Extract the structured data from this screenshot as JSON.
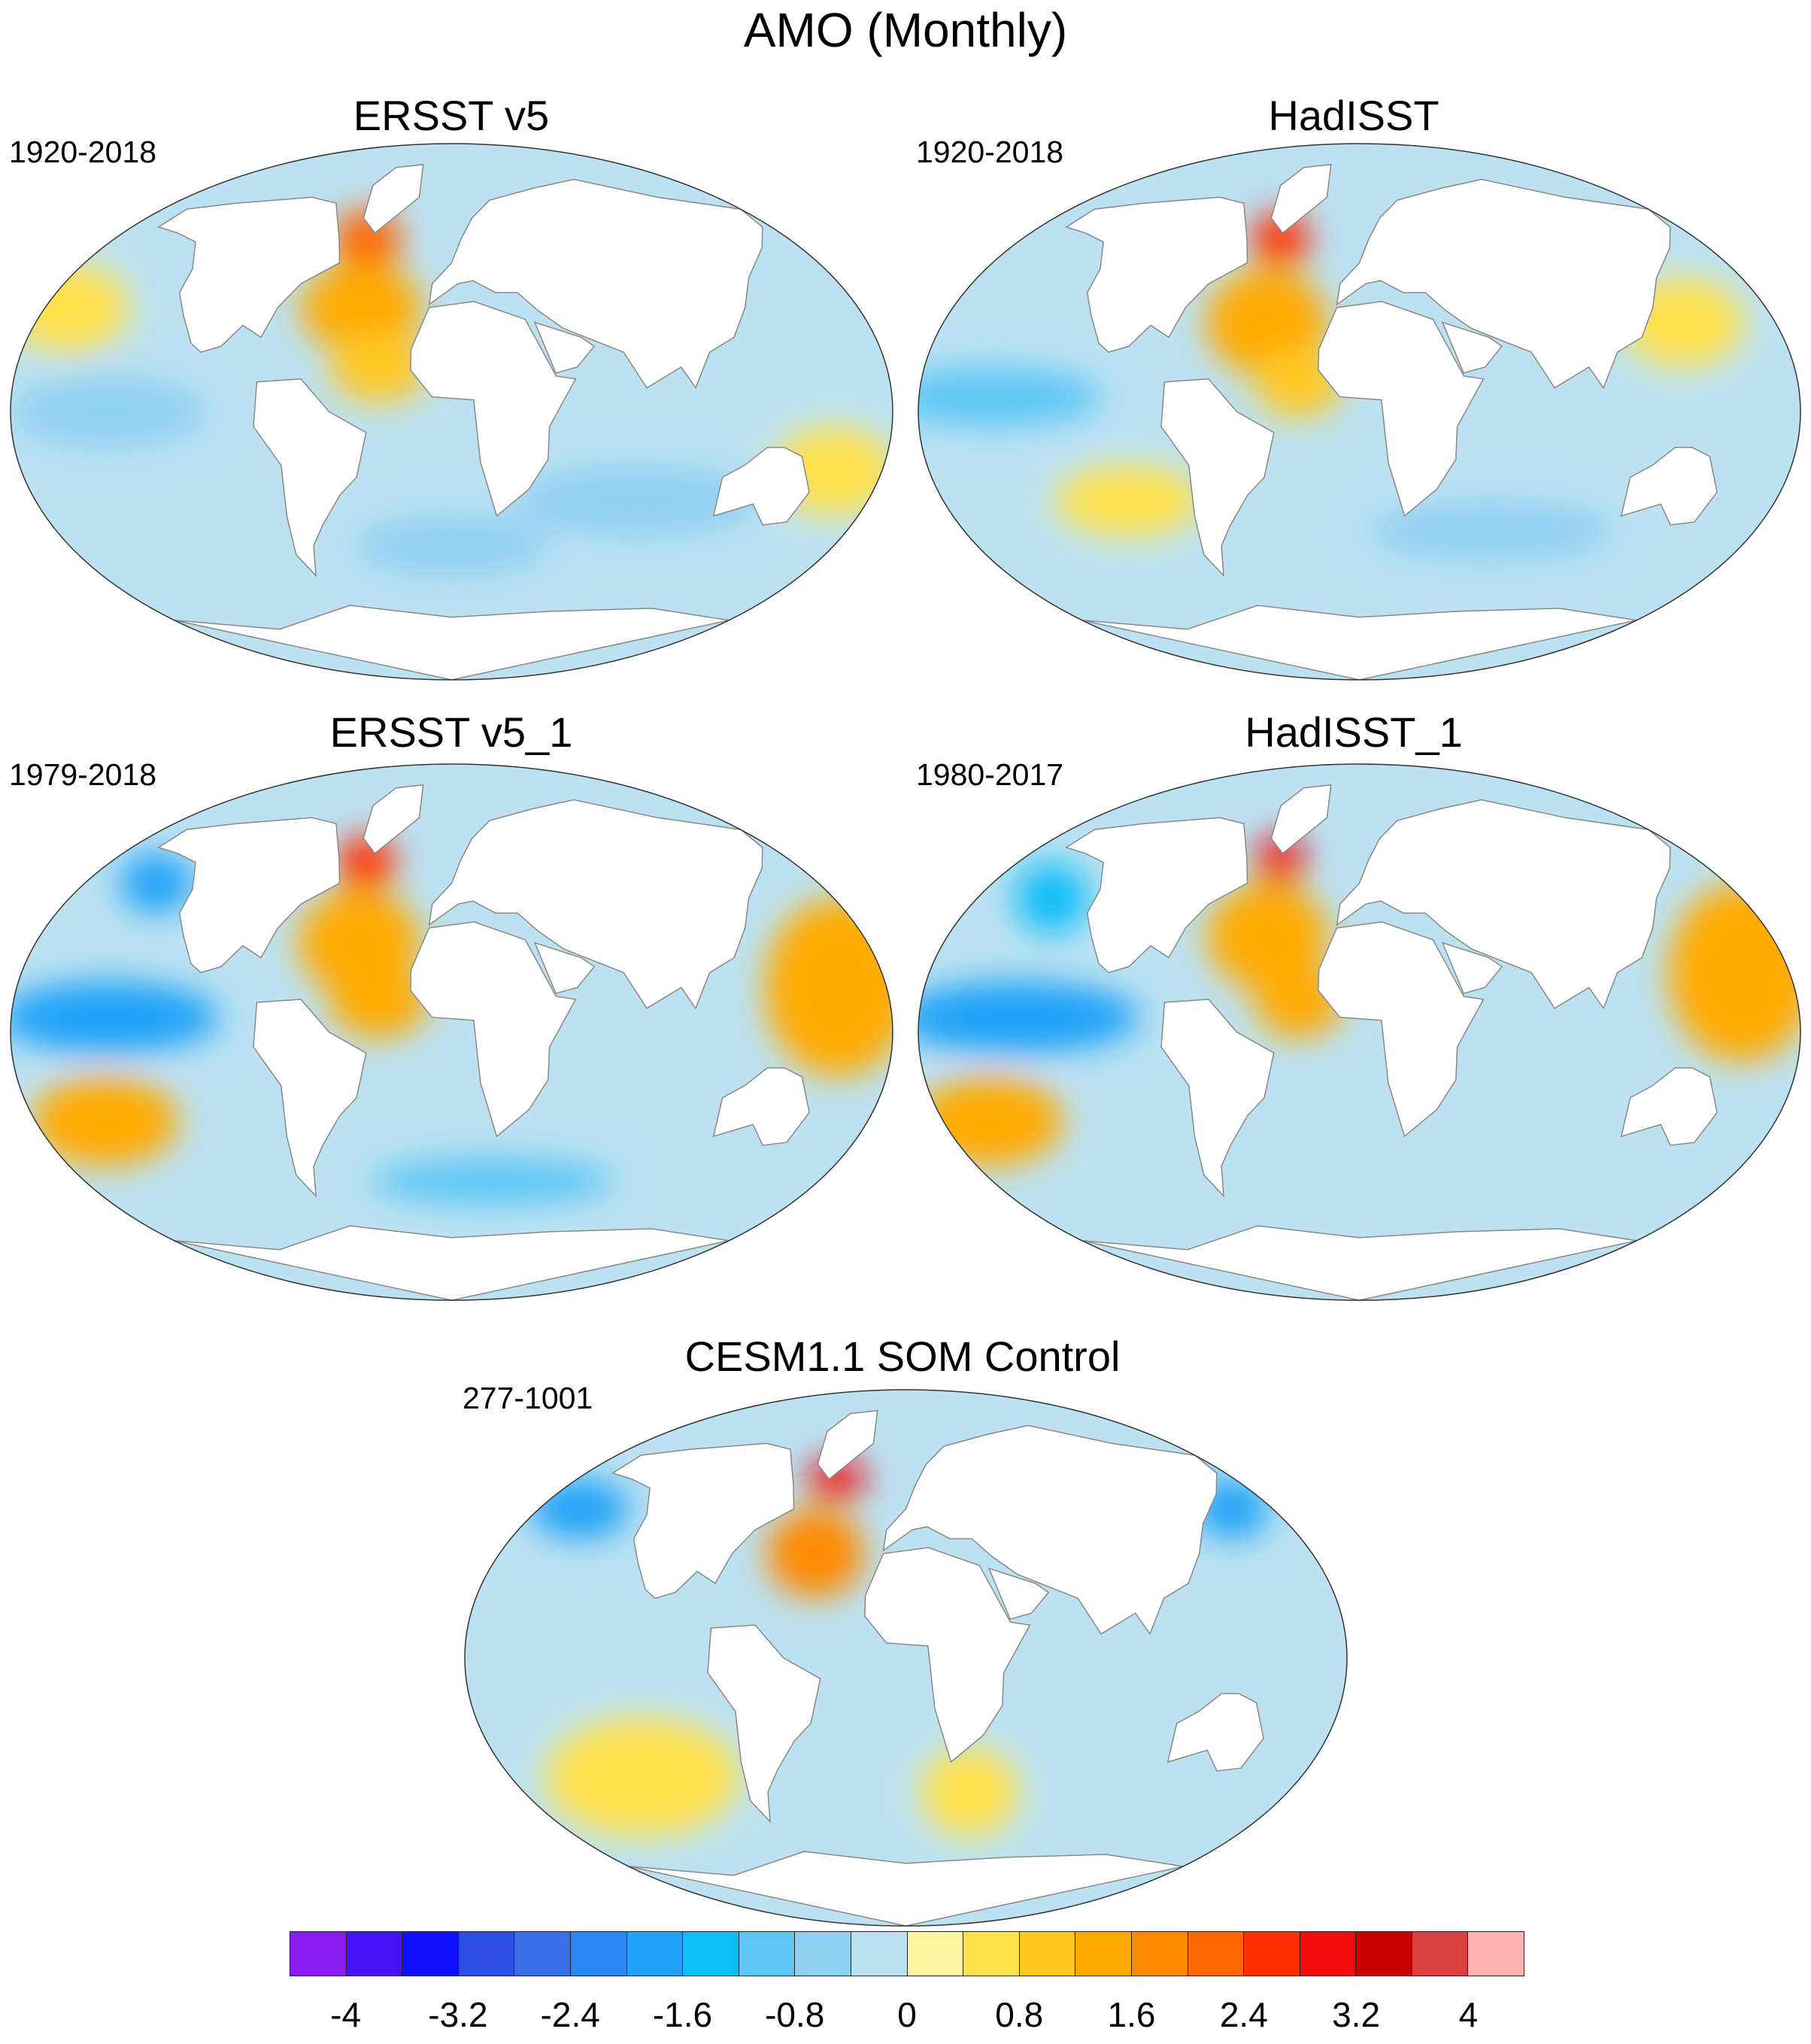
{
  "title": "AMO (Monthly)",
  "panels": [
    {
      "id": "ersst",
      "title": "ERSST v5",
      "period": "1920-2018",
      "blobs": [
        {
          "v": 2.2,
          "lon": -45,
          "lat": 58,
          "rlon": 14,
          "rlat": 10
        },
        {
          "v": 1.3,
          "lon": -40,
          "lat": 35,
          "rlon": 25,
          "rlat": 15
        },
        {
          "v": 1.0,
          "lon": -30,
          "lat": 15,
          "rlon": 20,
          "rlat": 12
        },
        {
          "v": -0.8,
          "lon": -140,
          "lat": 0,
          "rlon": 40,
          "rlat": 12
        },
        {
          "v": -0.6,
          "lon": 80,
          "lat": -30,
          "rlon": 50,
          "rlat": 12
        },
        {
          "v": -0.6,
          "lon": 0,
          "lat": -45,
          "rlon": 40,
          "rlat": 10
        },
        {
          "v": 0.4,
          "lon": -170,
          "lat": 35,
          "rlon": 25,
          "rlat": 15
        },
        {
          "v": 0.4,
          "lon": 160,
          "lat": -20,
          "rlon": 25,
          "rlat": 15
        }
      ]
    },
    {
      "id": "hadisst",
      "title": "HadISST",
      "period": "1920-2018",
      "blobs": [
        {
          "v": 2.4,
          "lon": -42,
          "lat": 58,
          "rlon": 12,
          "rlat": 9
        },
        {
          "v": 1.4,
          "lon": -40,
          "lat": 30,
          "rlon": 25,
          "rlat": 18
        },
        {
          "v": 1.0,
          "lon": -25,
          "lat": 10,
          "rlon": 18,
          "rlat": 12
        },
        {
          "v": -1.0,
          "lon": -150,
          "lat": 5,
          "rlon": 45,
          "rlat": 10
        },
        {
          "v": -0.6,
          "lon": 60,
          "lat": -40,
          "rlon": 50,
          "rlat": 10
        },
        {
          "v": 0.5,
          "lon": 140,
          "lat": 30,
          "rlon": 25,
          "rlat": 15
        },
        {
          "v": 0.4,
          "lon": -100,
          "lat": -30,
          "rlon": 30,
          "rlat": 12
        }
      ]
    },
    {
      "id": "ersst1",
      "title": "ERSST v5_1",
      "period": "1979-2018",
      "blobs": [
        {
          "v": 2.6,
          "lon": -45,
          "lat": 57,
          "rlon": 12,
          "rlat": 9
        },
        {
          "v": 1.6,
          "lon": -40,
          "lat": 30,
          "rlon": 25,
          "rlat": 18
        },
        {
          "v": 1.2,
          "lon": -30,
          "lat": 10,
          "rlon": 20,
          "rlat": 12
        },
        {
          "v": -1.8,
          "lon": -140,
          "lat": 5,
          "rlon": 45,
          "rlat": 12
        },
        {
          "v": -1.6,
          "lon": -145,
          "lat": 50,
          "rlon": 15,
          "rlat": 10
        },
        {
          "v": 1.4,
          "lon": -150,
          "lat": -30,
          "rlon": 30,
          "rlat": 15
        },
        {
          "v": 1.2,
          "lon": 160,
          "lat": 15,
          "rlon": 30,
          "rlat": 30
        },
        {
          "v": -1.0,
          "lon": 20,
          "lat": -50,
          "rlon": 50,
          "rlat": 8
        }
      ]
    },
    {
      "id": "hadisst1",
      "title": "HadISST_1",
      "period": "1980-2017",
      "blobs": [
        {
          "v": 3.0,
          "lon": -42,
          "lat": 58,
          "rlon": 10,
          "rlat": 8
        },
        {
          "v": 1.6,
          "lon": -40,
          "lat": 32,
          "rlon": 25,
          "rlat": 18
        },
        {
          "v": 1.2,
          "lon": -25,
          "lat": 10,
          "rlon": 18,
          "rlat": 12
        },
        {
          "v": -1.8,
          "lon": -140,
          "lat": 5,
          "rlon": 50,
          "rlat": 12
        },
        {
          "v": -1.4,
          "lon": -145,
          "lat": 45,
          "rlon": 15,
          "rlat": 12
        },
        {
          "v": 1.2,
          "lon": -160,
          "lat": -30,
          "rlon": 30,
          "rlat": 15
        },
        {
          "v": 1.2,
          "lon": 160,
          "lat": 20,
          "rlon": 30,
          "rlat": 30
        }
      ]
    },
    {
      "id": "cesm",
      "title": "CESM1.1 SOM Control",
      "period": "277-1001",
      "blobs": [
        {
          "v": 3.0,
          "lon": -38,
          "lat": 60,
          "rlon": 12,
          "rlat": 7
        },
        {
          "v": 1.8,
          "lon": -40,
          "lat": 35,
          "rlon": 20,
          "rlat": 15
        },
        {
          "v": -1.6,
          "lon": -160,
          "lat": 50,
          "rlon": 20,
          "rlat": 10
        },
        {
          "v": -1.6,
          "lon": 160,
          "lat": 50,
          "rlon": 15,
          "rlat": 10
        },
        {
          "v": 0.4,
          "lon": -120,
          "lat": -40,
          "rlon": 40,
          "rlat": 20
        },
        {
          "v": 0.4,
          "lon": 30,
          "lat": -45,
          "rlon": 20,
          "rlat": 15
        }
      ]
    }
  ],
  "colorbar": {
    "colors": [
      "#8C1CF5",
      "#4512F5",
      "#1010FF",
      "#2E4FE6",
      "#3A6EE8",
      "#2A88F5",
      "#1FA2F7",
      "#0DBEF7",
      "#5CC6F5",
      "#8FD0F2",
      "#BCE2F2",
      "#FFF5A0",
      "#FFE14C",
      "#FFC820",
      "#FFAA00",
      "#FF8A00",
      "#FF6500",
      "#FF2E00",
      "#F20C0C",
      "#C90000",
      "#DB4040",
      "#FFB0B0"
    ],
    "labels": [
      "-4",
      "-3.2",
      "-2.4",
      "-1.6",
      "-0.8",
      "0",
      "0.8",
      "1.6",
      "2.4",
      "3.2",
      "4"
    ]
  }
}
